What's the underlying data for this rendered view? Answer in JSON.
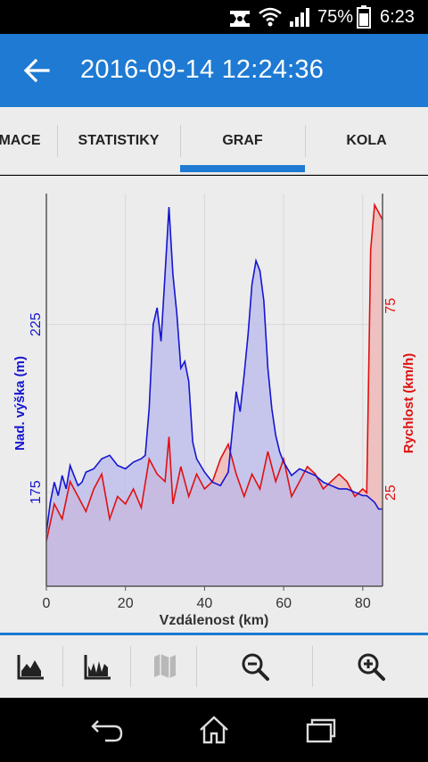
{
  "status_bar": {
    "battery_percent": "75%",
    "time": "6:23",
    "icons": [
      "notification-icon",
      "wifi-icon",
      "signal-icon",
      "battery-icon"
    ]
  },
  "app_bar": {
    "title": "2016-09-14 12:24:36",
    "back_icon": "arrow-left-icon"
  },
  "tabs": [
    {
      "label": "MACE",
      "selected": false
    },
    {
      "label": "STATISTIKY",
      "selected": false
    },
    {
      "label": "GRAF",
      "selected": true
    },
    {
      "label": "KOLA",
      "selected": false
    }
  ],
  "chart_data": {
    "type": "area",
    "xlabel": "Vzdálenost (km)",
    "x_ticks": [
      "0",
      "20",
      "40",
      "60",
      "80"
    ],
    "xlim": [
      0,
      85
    ],
    "left_axis": {
      "label": "Nad. výška (m)",
      "ticks": [
        "175",
        "225"
      ],
      "color": "#1515d0"
    },
    "right_axis": {
      "label": "Rychlost (km/h)",
      "ticks": [
        "25",
        "75"
      ],
      "color": "#e01010"
    },
    "series": [
      {
        "name": "Nad. výška (m)",
        "axis": "left",
        "color": "#1515d0",
        "fill": "#b9b9ee",
        "x": [
          0,
          1,
          2,
          3,
          4,
          5,
          6,
          7,
          8,
          9,
          10,
          12,
          14,
          16,
          18,
          20,
          22,
          24,
          25,
          26,
          27,
          28,
          29,
          30,
          31,
          32,
          33,
          34,
          35,
          36,
          37,
          38,
          40,
          42,
          44,
          46,
          48,
          49,
          50,
          51,
          52,
          53,
          54,
          55,
          56,
          57,
          58,
          59,
          60,
          62,
          64,
          66,
          68,
          70,
          72,
          74,
          76,
          78,
          80,
          81,
          82,
          83,
          84,
          85
        ],
        "y": [
          163,
          172,
          178,
          174,
          180,
          176,
          183,
          180,
          177,
          178,
          181,
          182,
          185,
          186,
          183,
          182,
          184,
          185,
          186,
          200,
          225,
          230,
          220,
          240,
          260,
          240,
          228,
          212,
          214,
          208,
          190,
          185,
          181,
          178,
          177,
          181,
          205,
          199,
          210,
          222,
          237,
          244,
          241,
          232,
          212,
          200,
          192,
          187,
          184,
          180,
          182,
          181,
          180,
          178,
          177,
          176,
          176,
          175,
          174,
          174,
          173,
          172,
          170,
          170
        ]
      },
      {
        "name": "Rychlost (km/h)",
        "axis": "right",
        "color": "#e01010",
        "fill": "#f0b8b8",
        "x": [
          0,
          2,
          4,
          6,
          8,
          10,
          12,
          14,
          16,
          18,
          20,
          22,
          24,
          26,
          28,
          30,
          31,
          32,
          34,
          36,
          38,
          40,
          42,
          44,
          46,
          48,
          50,
          52,
          54,
          56,
          58,
          60,
          62,
          64,
          66,
          68,
          70,
          72,
          74,
          76,
          78,
          80,
          81,
          82,
          83,
          84,
          85
        ],
        "y": [
          12,
          22,
          18,
          28,
          24,
          20,
          26,
          30,
          18,
          24,
          22,
          26,
          21,
          34,
          30,
          28,
          40,
          22,
          32,
          24,
          30,
          26,
          28,
          34,
          38,
          30,
          24,
          30,
          26,
          36,
          28,
          34,
          24,
          28,
          32,
          30,
          26,
          28,
          30,
          28,
          24,
          26,
          25,
          90,
          102,
          100,
          98
        ]
      }
    ]
  },
  "toolbar": {
    "buttons": [
      {
        "icon": "elevation-chart-icon",
        "enabled": true
      },
      {
        "icon": "speed-chart-icon",
        "enabled": true
      },
      {
        "icon": "map-icon",
        "enabled": false
      },
      {
        "icon": "zoom-out-icon",
        "enabled": true
      },
      {
        "icon": "zoom-in-icon",
        "enabled": true
      }
    ]
  },
  "nav_bar": {
    "buttons": [
      "back-icon",
      "home-icon",
      "recent-apps-icon"
    ]
  }
}
